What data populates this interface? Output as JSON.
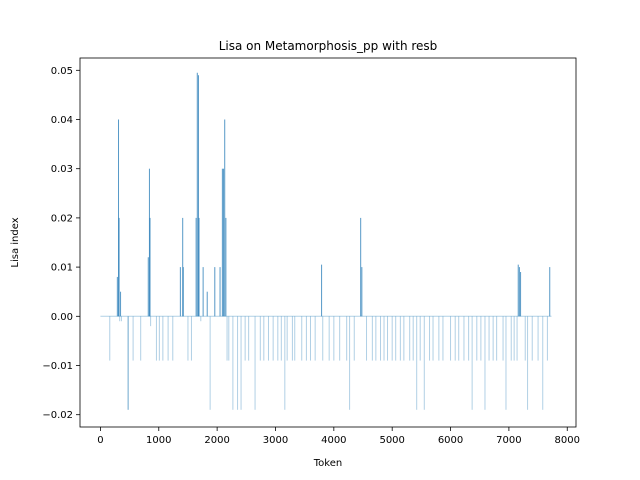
{
  "chart_data": {
    "type": "bar",
    "title": "Lisa on Metamorphosis_pp with resb",
    "xlabel": "Token",
    "ylabel": "Lisa index",
    "xlim": [
      -350,
      8150
    ],
    "ylim": [
      -0.0225,
      0.0525
    ],
    "xticks": [
      0,
      1000,
      2000,
      3000,
      4000,
      5000,
      6000,
      7000,
      8000
    ],
    "xtick_labels": [
      "0",
      "1000",
      "2000",
      "3000",
      "4000",
      "5000",
      "6000",
      "7000",
      "8000"
    ],
    "yticks": [
      -0.02,
      -0.01,
      0.0,
      0.01,
      0.02,
      0.03,
      0.04,
      0.05
    ],
    "ytick_labels": [
      "−0.02",
      "−0.01",
      "0.00",
      "0.01",
      "0.02",
      "0.03",
      "0.04",
      "0.05"
    ],
    "grid": false,
    "legend": "none",
    "bar_color": "#1f77b4",
    "token_count": 7730,
    "series": [
      {
        "x": [
          160,
          290,
          310,
          320,
          330,
          345,
          360,
          470,
          480,
          560,
          690,
          820,
          840,
          850,
          860,
          960,
          1010,
          1070,
          1160,
          1240,
          1370,
          1410,
          1420,
          1500,
          1560,
          1640,
          1660,
          1680,
          1690,
          1720,
          1760,
          1830,
          1880,
          1960,
          2050,
          2090,
          2110,
          2130,
          2150,
          2170,
          2200,
          2270,
          2350,
          2410,
          2480,
          2540,
          2650,
          2740,
          2800,
          2880,
          2960,
          3040,
          3100,
          3160,
          3200,
          3290,
          3330,
          3450,
          3530,
          3600,
          3680,
          3790,
          3810,
          3920,
          4000,
          4100,
          4220,
          4270,
          4350,
          4460,
          4480,
          4560,
          4660,
          4720,
          4800,
          4860,
          4920,
          5000,
          5060,
          5140,
          5200,
          5300,
          5360,
          5420,
          5480,
          5550,
          5640,
          5700,
          5800,
          5870,
          6000,
          6080,
          6140,
          6230,
          6310,
          6370,
          6450,
          6520,
          6590,
          6660,
          6730,
          6790,
          6900,
          6950,
          7040,
          7090,
          7140,
          7160,
          7180,
          7200,
          7280,
          7320,
          7400,
          7500,
          7580,
          7660,
          7700
        ],
        "values": [
          -0.009,
          0.008,
          0.04,
          0.02,
          -0.001,
          0.005,
          -0.001,
          -0.019,
          -0.019,
          -0.009,
          -0.009,
          0.012,
          0.03,
          0.02,
          -0.002,
          -0.009,
          -0.009,
          -0.009,
          -0.009,
          -0.009,
          0.01,
          0.02,
          0.01,
          -0.009,
          -0.009,
          0.02,
          0.0495,
          0.049,
          0.02,
          -0.001,
          0.01,
          0.005,
          -0.019,
          0.01,
          0.01,
          0.03,
          0.03,
          0.04,
          0.02,
          -0.009,
          -0.009,
          -0.019,
          -0.019,
          -0.019,
          -0.009,
          -0.009,
          -0.019,
          -0.009,
          -0.009,
          -0.009,
          -0.009,
          -0.009,
          -0.009,
          -0.019,
          -0.009,
          -0.009,
          -0.009,
          -0.009,
          -0.009,
          -0.009,
          -0.009,
          0.0105,
          -0.009,
          -0.009,
          -0.009,
          -0.009,
          -0.009,
          -0.019,
          -0.009,
          0.02,
          0.01,
          -0.009,
          -0.009,
          -0.009,
          -0.009,
          -0.009,
          -0.009,
          -0.009,
          -0.009,
          -0.009,
          -0.009,
          -0.009,
          -0.009,
          -0.019,
          -0.009,
          -0.019,
          -0.009,
          -0.009,
          -0.009,
          -0.009,
          -0.009,
          -0.009,
          -0.009,
          -0.009,
          -0.009,
          -0.019,
          -0.009,
          -0.009,
          -0.019,
          -0.009,
          -0.009,
          -0.009,
          -0.009,
          -0.019,
          -0.009,
          -0.009,
          -0.009,
          0.0105,
          0.01,
          0.009,
          -0.009,
          -0.019,
          -0.009,
          -0.009,
          -0.019,
          -0.009,
          0.01
        ]
      }
    ]
  }
}
